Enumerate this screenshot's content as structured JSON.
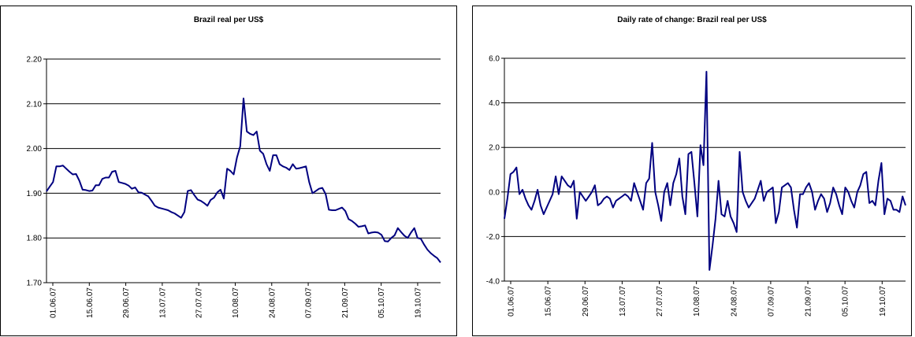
{
  "chart_data": [
    {
      "type": "line",
      "title": "Brazil real per US$",
      "ylim": [
        1.7,
        2.2
      ],
      "yticks": [
        "1.70",
        "1.80",
        "1.90",
        "2.00",
        "2.10",
        "2.20"
      ],
      "ytick_values": [
        1.7,
        1.8,
        1.9,
        2.0,
        2.1,
        2.2
      ],
      "xticks": [
        "01.06.07",
        "15.06.07",
        "29.06.07",
        "13.07.07",
        "27.07.07",
        "10.08.07",
        "24.08.07",
        "07.09.07",
        "21.09.07",
        "05.10.07",
        "19.10.07"
      ],
      "grid": true,
      "color": "#000080",
      "series": [
        {
          "values": [
            1.904,
            1.915,
            1.925,
            1.96,
            1.96,
            1.962,
            1.955,
            1.948,
            1.942,
            1.943,
            1.928,
            1.908,
            1.907,
            1.905,
            1.906,
            1.918,
            1.918,
            1.932,
            1.935,
            1.935,
            1.948,
            1.95,
            1.925,
            1.923,
            1.921,
            1.917,
            1.91,
            1.913,
            1.902,
            1.901,
            1.897,
            1.893,
            1.883,
            1.872,
            1.868,
            1.866,
            1.864,
            1.862,
            1.858,
            1.855,
            1.85,
            1.845,
            1.858,
            1.905,
            1.907,
            1.896,
            1.886,
            1.883,
            1.878,
            1.872,
            1.885,
            1.89,
            1.902,
            1.908,
            1.888,
            1.955,
            1.95,
            1.942,
            1.98,
            2.005,
            2.112,
            2.038,
            2.033,
            2.03,
            2.038,
            1.995,
            1.988,
            1.965,
            1.95,
            1.985,
            1.985,
            1.965,
            1.96,
            1.957,
            1.952,
            1.965,
            1.955,
            1.956,
            1.958,
            1.96,
            1.925,
            1.9,
            1.905,
            1.91,
            1.912,
            1.898,
            1.863,
            1.862,
            1.862,
            1.865,
            1.868,
            1.86,
            1.842,
            1.838,
            1.832,
            1.825,
            1.826,
            1.828,
            1.81,
            1.812,
            1.813,
            1.812,
            1.807,
            1.793,
            1.792,
            1.8,
            1.806,
            1.822,
            1.813,
            1.805,
            1.8,
            1.812,
            1.822,
            1.8,
            1.798,
            1.785,
            1.774,
            1.766,
            1.76,
            1.755,
            1.745
          ]
        }
      ]
    },
    {
      "type": "line",
      "title": "Daily rate of change: Brazil real per US$",
      "ylim": [
        -4.0,
        6.0
      ],
      "yticks": [
        "-4.0",
        "-2.0",
        "0.0",
        "2.0",
        "4.0",
        "6.0"
      ],
      "ytick_values": [
        -4.0,
        -2.0,
        0.0,
        2.0,
        4.0,
        6.0
      ],
      "xticks": [
        "01.06.07",
        "15.06.07",
        "29.06.07",
        "13.07.07",
        "27.07.07",
        "10.08.07",
        "24.08.07",
        "07.09.07",
        "21.09.07",
        "05.10.07",
        "19.10.07"
      ],
      "grid": true,
      "color": "#000080",
      "series": [
        {
          "values": [
            -1.2,
            -0.3,
            0.8,
            0.9,
            1.1,
            -0.1,
            0.1,
            -0.3,
            -0.6,
            -0.8,
            -0.4,
            0.1,
            -0.6,
            -1.0,
            -0.7,
            -0.4,
            -0.1,
            0.7,
            -0.1,
            0.7,
            0.5,
            0.3,
            0.2,
            0.5,
            -1.2,
            0.0,
            -0.2,
            -0.4,
            -0.2,
            0.0,
            0.3,
            -0.6,
            -0.5,
            -0.3,
            -0.2,
            -0.3,
            -0.7,
            -0.4,
            -0.3,
            -0.2,
            -0.1,
            -0.2,
            -0.4,
            0.4,
            0.0,
            -0.4,
            -0.8,
            0.4,
            0.6,
            2.2,
            0.0,
            -0.6,
            -1.3,
            0.0,
            0.4,
            -0.6,
            0.4,
            0.8,
            1.5,
            -0.2,
            -1.0,
            1.7,
            1.8,
            0.4,
            -1.1,
            2.1,
            1.2,
            5.4,
            -3.5,
            -2.4,
            -1.2,
            0.5,
            -1.0,
            -1.1,
            -0.4,
            -1.1,
            -1.4,
            -1.8,
            1.8,
            0.0,
            -0.4,
            -0.7,
            -0.5,
            -0.3,
            0.1,
            0.5,
            -0.4,
            0.0,
            0.1,
            0.2,
            -1.4,
            -0.9,
            0.2,
            0.3,
            0.4,
            0.2,
            -0.8,
            -1.6,
            -0.1,
            -0.1,
            0.2,
            0.4,
            0.0,
            -0.8,
            -0.4,
            -0.1,
            -0.3,
            -0.9,
            -0.5,
            0.2,
            -0.1,
            -0.6,
            -1.0,
            0.2,
            0.0,
            -0.4,
            -0.7,
            0.0,
            0.3,
            0.8,
            0.9,
            -0.5,
            -0.4,
            -0.6,
            0.5,
            1.3,
            -1.0,
            -0.3,
            -0.4,
            -0.8,
            -0.8,
            -0.9,
            -0.2,
            -0.6
          ]
        }
      ]
    }
  ]
}
